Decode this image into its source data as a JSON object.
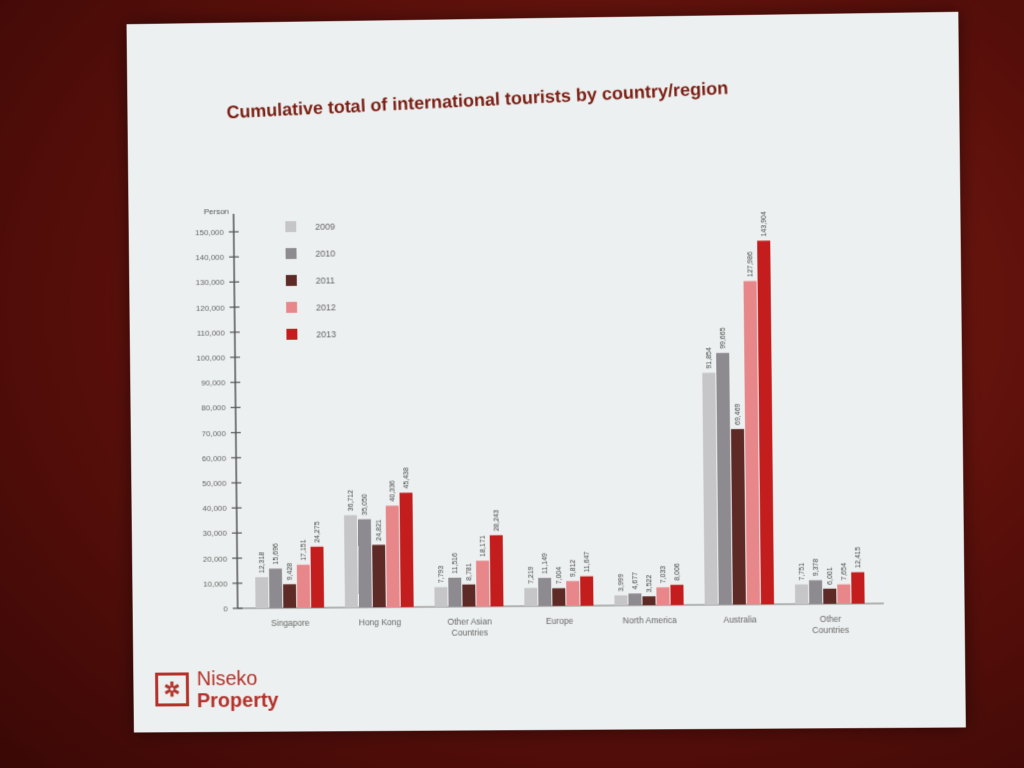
{
  "slide": {
    "title": "Cumulative total of international tourists by country/region"
  },
  "logo": {
    "line1": "Niseko",
    "line2": "Property",
    "color": "#b3312a"
  },
  "chart_data": {
    "type": "bar",
    "title": "Cumulative total of international tourists by country/region",
    "ylabel": "Person",
    "xlabel": "",
    "ylim": [
      0,
      150000
    ],
    "yticks": [
      "0",
      "10,000",
      "20,000",
      "30,000",
      "40,000",
      "50,000",
      "60,000",
      "70,000",
      "80,000",
      "90,000",
      "100,000",
      "110,000",
      "120,000",
      "130,000",
      "140,000",
      "150,000"
    ],
    "legend_position": "top-left",
    "categories": [
      [
        "Singapore"
      ],
      [
        "Hong Kong"
      ],
      [
        "Other Asian",
        "Countries"
      ],
      [
        "Europe"
      ],
      [
        "North America"
      ],
      [
        "Australia"
      ],
      [
        "Other",
        "Countries"
      ]
    ],
    "series": [
      {
        "name": "2009",
        "color": "#c6c6c9",
        "values": [
          12318,
          36712,
          7793,
          7219,
          3999,
          91854,
          7751
        ],
        "labels": [
          "12,318",
          "36,712",
          "7,793",
          "7,219",
          "3,999",
          "91,854",
          "7,751"
        ]
      },
      {
        "name": "2010",
        "color": "#8e8b90",
        "values": [
          15696,
          35050,
          11516,
          11149,
          4677,
          99665,
          9378
        ],
        "labels": [
          "15,696",
          "35,050",
          "11,516",
          "11,149",
          "4,677",
          "99,665",
          "9,378"
        ]
      },
      {
        "name": "2011",
        "color": "#5e2a26",
        "values": [
          9428,
          24821,
          8781,
          7004,
          3522,
          69469,
          6001
        ],
        "labels": [
          "9,428",
          "24,821",
          "8,781",
          "7,004",
          "3,522",
          "69,469",
          "6,001"
        ]
      },
      {
        "name": "2012",
        "color": "#e8878a",
        "values": [
          17151,
          40336,
          18171,
          9812,
          7033,
          127986,
          7654
        ],
        "labels": [
          "17,151",
          "40,336",
          "18,171",
          "9,812",
          "7,033",
          "127,986",
          "7,654"
        ]
      },
      {
        "name": "2013",
        "color": "#c41d1d",
        "values": [
          24275,
          45438,
          28243,
          11647,
          8006,
          143904,
          12415
        ],
        "labels": [
          "24,275",
          "45,438",
          "28,243",
          "11,647",
          "8,006",
          "143,904",
          "12,415"
        ]
      }
    ]
  }
}
